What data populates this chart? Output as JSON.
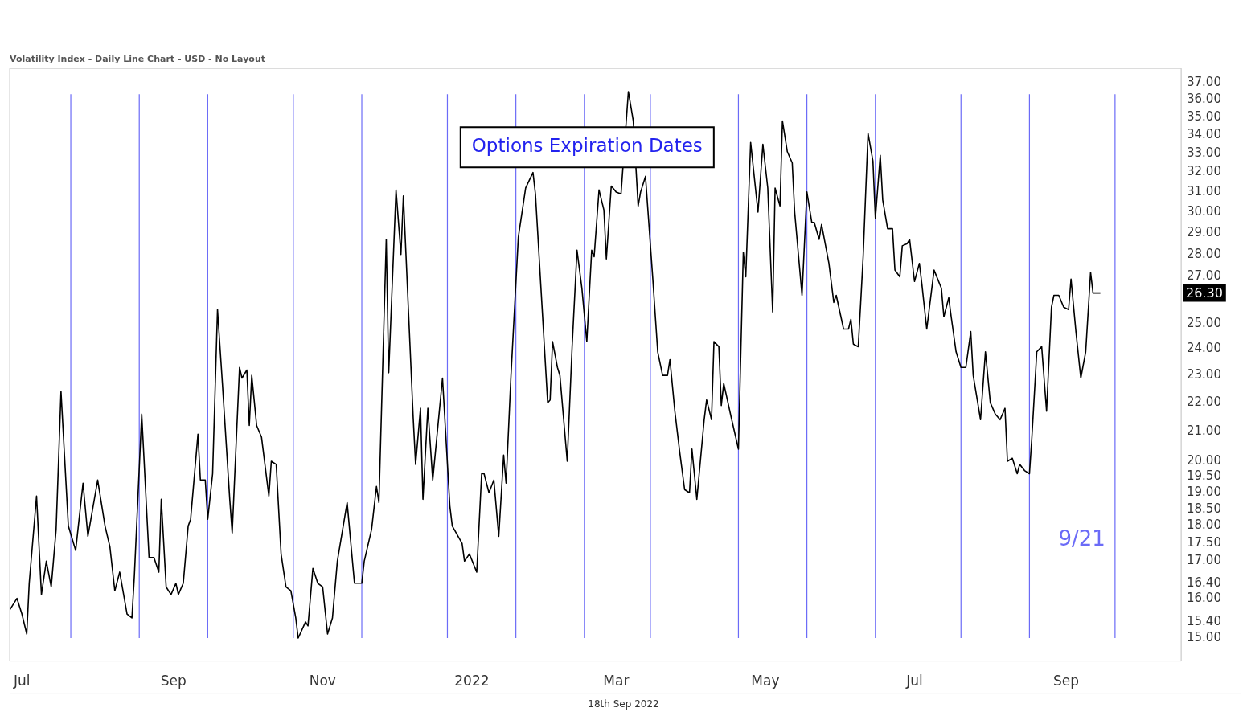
{
  "chart_data": {
    "type": "line",
    "title": "Volatility Index - Daily Line Chart - USD - No Layout",
    "x": [
      "2021-06-26",
      "2021-06-29",
      "2021-07-01",
      "2021-07-03",
      "2021-07-04",
      "2021-07-07",
      "2021-07-09",
      "2021-07-11",
      "2021-07-13",
      "2021-07-15",
      "2021-07-17",
      "2021-07-20",
      "2021-07-23",
      "2021-07-26",
      "2021-07-28",
      "2021-08-01",
      "2021-08-04",
      "2021-08-06",
      "2021-08-08",
      "2021-08-10",
      "2021-08-13",
      "2021-08-15",
      "2021-08-16",
      "2021-08-19",
      "2021-08-22",
      "2021-08-24",
      "2021-08-26",
      "2021-08-27",
      "2021-08-29",
      "2021-08-31",
      "2021-09-02",
      "2021-09-03",
      "2021-09-05",
      "2021-09-07",
      "2021-09-08",
      "2021-09-11",
      "2021-09-12",
      "2021-09-14",
      "2021-09-15",
      "2021-09-17",
      "2021-09-19",
      "2021-09-21",
      "2021-09-24",
      "2021-09-25",
      "2021-09-28",
      "2021-09-29",
      "2021-10-01",
      "2021-10-02",
      "2021-10-03",
      "2021-10-05",
      "2021-10-07",
      "2021-10-10",
      "2021-10-11",
      "2021-10-13",
      "2021-10-15",
      "2021-10-17",
      "2021-10-19",
      "2021-10-21",
      "2021-10-22",
      "2021-10-25",
      "2021-10-26",
      "2021-10-28",
      "2021-10-30",
      "2021-11-01",
      "2021-11-03",
      "2021-11-05",
      "2021-11-07",
      "2021-11-11",
      "2021-11-14",
      "2021-11-17",
      "2021-11-18",
      "2021-11-21",
      "2021-11-23",
      "2021-11-24",
      "2021-11-27",
      "2021-11-28",
      "2021-12-01",
      "2021-12-03",
      "2021-12-04",
      "2021-12-08",
      "2021-12-09",
      "2021-12-11",
      "2021-12-12",
      "2021-12-14",
      "2021-12-16",
      "2021-12-20",
      "2021-12-23",
      "2021-12-24",
      "2021-12-28",
      "2021-12-29",
      "2021-12-31",
      "2022-01-03",
      "2022-01-05",
      "2022-01-06",
      "2022-01-08",
      "2022-01-10",
      "2022-01-12",
      "2022-01-14",
      "2022-01-15",
      "2022-01-17",
      "2022-01-20",
      "2022-01-23",
      "2022-01-26",
      "2022-01-27",
      "2022-02-01",
      "2022-02-02",
      "2022-02-03",
      "2022-02-05",
      "2022-02-06",
      "2022-02-09",
      "2022-02-11",
      "2022-02-13",
      "2022-02-15",
      "2022-02-17",
      "2022-02-19",
      "2022-02-20",
      "2022-02-22",
      "2022-02-24",
      "2022-02-25",
      "2022-02-27",
      "2022-02-28",
      "2022-03-01",
      "2022-03-03",
      "2022-03-06",
      "2022-03-08",
      "2022-03-10",
      "2022-03-11",
      "2022-03-13",
      "2022-03-16",
      "2022-03-18",
      "2022-03-20",
      "2022-03-22",
      "2022-03-23",
      "2022-03-25",
      "2022-03-27",
      "2022-03-29",
      "2022-03-31",
      "2022-04-01",
      "2022-04-03",
      "2022-04-06",
      "2022-04-07",
      "2022-04-09",
      "2022-04-10",
      "2022-04-12",
      "2022-04-13",
      "2022-04-14",
      "2022-04-17",
      "2022-04-20",
      "2022-04-22",
      "2022-04-23",
      "2022-04-25",
      "2022-04-28",
      "2022-04-30",
      "2022-05-02",
      "2022-05-04",
      "2022-05-05",
      "2022-05-07",
      "2022-05-08",
      "2022-05-10",
      "2022-05-12",
      "2022-05-13",
      "2022-05-16",
      "2022-05-18",
      "2022-05-20",
      "2022-05-21",
      "2022-05-23",
      "2022-05-24",
      "2022-05-27",
      "2022-05-29",
      "2022-05-30",
      "2022-06-02",
      "2022-06-04",
      "2022-06-05",
      "2022-06-06",
      "2022-06-08",
      "2022-06-09",
      "2022-06-10",
      "2022-06-12",
      "2022-06-14",
      "2022-06-15",
      "2022-06-17",
      "2022-06-18",
      "2022-06-20",
      "2022-06-22",
      "2022-06-23",
      "2022-06-25",
      "2022-06-26",
      "2022-06-28",
      "2022-06-29",
      "2022-07-01",
      "2022-07-03",
      "2022-07-04",
      "2022-07-06",
      "2022-07-09",
      "2022-07-12",
      "2022-07-13",
      "2022-07-15",
      "2022-07-16",
      "2022-07-18",
      "2022-07-20",
      "2022-07-22",
      "2022-07-24",
      "2022-07-25",
      "2022-07-28",
      "2022-07-30",
      "2022-08-01",
      "2022-08-03",
      "2022-08-05",
      "2022-08-07",
      "2022-08-08",
      "2022-08-10",
      "2022-08-12",
      "2022-08-13",
      "2022-08-15",
      "2022-08-17",
      "2022-08-18",
      "2022-08-20",
      "2022-08-22",
      "2022-08-24",
      "2022-08-26",
      "2022-08-27",
      "2022-08-29",
      "2022-08-31",
      "2022-09-02",
      "2022-09-03",
      "2022-09-05",
      "2022-09-07",
      "2022-09-09",
      "2022-09-11",
      "2022-09-12",
      "2022-09-14",
      "2022-09-15"
    ],
    "values": [
      15.7,
      16.0,
      15.6,
      15.1,
      16.4,
      18.9,
      16.1,
      17.0,
      16.3,
      17.9,
      22.4,
      18.0,
      17.3,
      19.3,
      17.7,
      19.4,
      18.0,
      17.4,
      16.2,
      16.7,
      15.6,
      15.5,
      16.6,
      21.6,
      17.1,
      17.1,
      16.7,
      18.8,
      16.3,
      16.1,
      16.4,
      16.1,
      16.4,
      18.0,
      18.2,
      20.9,
      19.4,
      19.4,
      18.2,
      19.6,
      25.6,
      22.7,
      18.8,
      17.8,
      23.3,
      22.9,
      23.2,
      21.2,
      23.0,
      21.2,
      20.8,
      18.9,
      20.0,
      19.9,
      17.2,
      16.3,
      16.2,
      15.5,
      15.0,
      15.4,
      15.3,
      16.8,
      16.4,
      16.3,
      15.1,
      15.5,
      17.0,
      18.7,
      16.4,
      16.4,
      17.0,
      17.9,
      19.2,
      18.7,
      28.7,
      23.1,
      31.1,
      28.0,
      30.8,
      21.5,
      19.9,
      21.8,
      18.8,
      21.8,
      19.4,
      22.9,
      18.6,
      18.0,
      17.5,
      17.0,
      17.2,
      16.7,
      19.6,
      19.6,
      19.0,
      19.4,
      17.7,
      20.2,
      19.3,
      23.0,
      28.8,
      31.2,
      32.0,
      30.9,
      22.0,
      22.1,
      24.3,
      23.3,
      23.0,
      20.0,
      24.1,
      28.2,
      26.5,
      24.3,
      28.2,
      27.9,
      31.1,
      30.1,
      27.8,
      31.3,
      null,
      31.0,
      30.9,
      36.5,
      34.8,
      30.3,
      31.0,
      31.8,
      26.9,
      23.9,
      23.0,
      23.0,
      23.6,
      21.7,
      20.3,
      19.1,
      19.0,
      20.4,
      18.8,
      21.4,
      22.1,
      21.4,
      24.3,
      24.1,
      21.9,
      22.7,
      21.5,
      20.4,
      28.1,
      27.0,
      33.6,
      30.0,
      33.5,
      31.2,
      25.5,
      31.2,
      30.3,
      34.8,
      33.1,
      32.5,
      30.0,
      26.2,
      31.0,
      29.5,
      29.5,
      28.7,
      29.4,
      27.6,
      25.9,
      26.2,
      24.8,
      24.8,
      25.2,
      24.2,
      24.1,
      25.9,
      27.9,
      34.1,
      32.6,
      29.7,
      32.9,
      30.6,
      29.2,
      29.2,
      27.3,
      27.0,
      28.4,
      28.5,
      28.7,
      26.8,
      27.6,
      26.7,
      24.8,
      27.3,
      26.5,
      25.3,
      26.1,
      25.3,
      23.9,
      23.3,
      23.3,
      24.7,
      23.0,
      21.4,
      23.9,
      22.0,
      21.6,
      21.4,
      21.8,
      20.0,
      20.1,
      19.6,
      19.9,
      19.7,
      19.6,
      20.8,
      23.9,
      24.1,
      21.7,
      25.7,
      26.2,
      26.2,
      25.7,
      25.6,
      26.9,
      24.7,
      22.9,
      23.9,
      27.2,
      26.3,
      26.3,
      26.3
    ],
    "color": "#000000",
    "log": "y",
    "grid": false,
    "legend": false,
    "marker": "none",
    "line_style": "solid",
    "xlim": [
      "2021-06-26",
      "2022-10-18"
    ],
    "xticks": [
      {
        "value": "2021-07-01",
        "label": "Jul"
      },
      {
        "value": "2021-09-01",
        "label": "Sep"
      },
      {
        "value": "2021-11-01",
        "label": "Nov"
      },
      {
        "value": "2022-01-01",
        "label": "2022"
      },
      {
        "value": "2022-03-01",
        "label": "Mar"
      },
      {
        "value": "2022-05-01",
        "label": "May"
      },
      {
        "value": "2022-07-01",
        "label": "Jul"
      },
      {
        "value": "2022-09-01",
        "label": "Sep"
      }
    ],
    "ylim": [
      14.45,
      37.9
    ],
    "yticks": [
      {
        "value": 15,
        "label": "15.00"
      },
      {
        "value": 15.4,
        "label": "15.40"
      },
      {
        "value": 16,
        "label": "16.00"
      },
      {
        "value": 16.4,
        "label": "16.40"
      },
      {
        "value": 17,
        "label": "17.00"
      },
      {
        "value": 17.5,
        "label": "17.50"
      },
      {
        "value": 18,
        "label": "18.00"
      },
      {
        "value": 18.5,
        "label": "18.50"
      },
      {
        "value": 19,
        "label": "19.00"
      },
      {
        "value": 19.5,
        "label": "19.50"
      },
      {
        "value": 20,
        "label": "20.00"
      },
      {
        "value": 21,
        "label": "21.00"
      },
      {
        "value": 22,
        "label": "22.00"
      },
      {
        "value": 23,
        "label": "23.00"
      },
      {
        "value": 24,
        "label": "24.00"
      },
      {
        "value": 25,
        "label": "25.00"
      },
      {
        "value": 27,
        "label": "27.00"
      },
      {
        "value": 28,
        "label": "28.00"
      },
      {
        "value": 29,
        "label": "29.00"
      },
      {
        "value": 30,
        "label": "30.00"
      },
      {
        "value": 31,
        "label": "31.00"
      },
      {
        "value": 32,
        "label": "32.00"
      },
      {
        "value": 33,
        "label": "33.00"
      },
      {
        "value": 34,
        "label": "34.00"
      },
      {
        "value": 35,
        "label": "35.00"
      },
      {
        "value": 36,
        "label": "36.00"
      },
      {
        "value": 37,
        "label": "37.00"
      }
    ],
    "ref_lines": [
      {
        "axis": "x",
        "value": "2021-07-21",
        "color": "#6b6bf7"
      },
      {
        "axis": "x",
        "value": "2021-08-18",
        "color": "#6b6bf7"
      },
      {
        "axis": "x",
        "value": "2021-09-15",
        "color": "#6b6bf7"
      },
      {
        "axis": "x",
        "value": "2021-10-20",
        "color": "#6b6bf7"
      },
      {
        "axis": "x",
        "value": "2021-11-17",
        "color": "#6b6bf7"
      },
      {
        "axis": "x",
        "value": "2021-12-22",
        "color": "#6b6bf7"
      },
      {
        "axis": "x",
        "value": "2022-01-19",
        "color": "#6b6bf7"
      },
      {
        "axis": "x",
        "value": "2022-02-16",
        "color": "#6b6bf7"
      },
      {
        "axis": "x",
        "value": "2022-03-15",
        "color": "#6b6bf7"
      },
      {
        "axis": "x",
        "value": "2022-04-20",
        "color": "#6b6bf7"
      },
      {
        "axis": "x",
        "value": "2022-05-18",
        "color": "#6b6bf7"
      },
      {
        "axis": "x",
        "value": "2022-06-15",
        "color": "#6b6bf7"
      },
      {
        "axis": "x",
        "value": "2022-07-20",
        "color": "#6b6bf7"
      },
      {
        "axis": "x",
        "value": "2022-08-17",
        "color": "#6b6bf7"
      },
      {
        "axis": "x",
        "value": "2022-09-21",
        "color": "#6b6bf7",
        "label": "9/21"
      }
    ],
    "annotations": [
      "Options Expiration Dates",
      "26.30",
      "18th Sep 2022"
    ]
  }
}
